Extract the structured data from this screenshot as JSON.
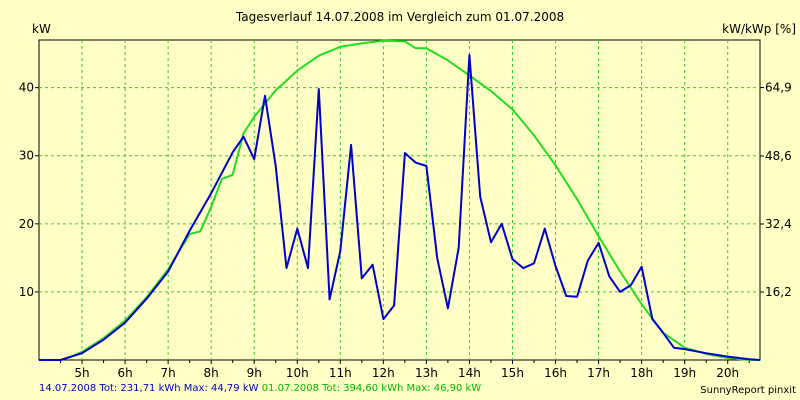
{
  "title": "Tagesverlauf 14.07.2008 im Vergleich zum 01.07.2008",
  "left_unit": "kW",
  "right_unit": "kW/kWp [%]",
  "footer_left": "14.07.2008 Tot: 231,71 kWh Max: 44,79 kW",
  "footer_mid": " 01.07.2008 Tot: 394,60 kWh Max: 46,90 kW",
  "footer_right": "SunnyReport pinxit",
  "colors": {
    "background": "#ffffc6",
    "grid": "#33cc33",
    "series1": "#0000cc",
    "series2": "#22dd22"
  },
  "chart_data": {
    "type": "line",
    "xlim": [
      4.0,
      20.75
    ],
    "ylim": [
      0,
      47
    ],
    "grid": true,
    "x_ticks": [
      5,
      6,
      7,
      8,
      9,
      10,
      11,
      12,
      13,
      14,
      15,
      16,
      17,
      18,
      19,
      20
    ],
    "x_tick_labels": [
      "5h",
      "6h",
      "7h",
      "8h",
      "9h",
      "10h",
      "11h",
      "12h",
      "13h",
      "14h",
      "15h",
      "16h",
      "17h",
      "18h",
      "19h",
      "20h"
    ],
    "y_ticks": [
      10,
      20,
      30,
      40
    ],
    "y_tick_labels": [
      "10",
      "20",
      "30",
      "40"
    ],
    "y2_ticks": [
      16.2,
      32.4,
      48.6,
      64.9
    ],
    "y2_tick_labels": [
      "16,2",
      "32,4",
      "48,6",
      "64,9"
    ],
    "y2_scale": 1.622,
    "series": [
      {
        "name": "14.07.2008",
        "color": "#0000cc",
        "x": [
          4.0,
          4.5,
          4.75,
          5.0,
          5.5,
          6.0,
          6.5,
          7.0,
          7.5,
          8.0,
          8.5,
          8.75,
          9.0,
          9.25,
          9.5,
          9.75,
          10.0,
          10.25,
          10.5,
          10.75,
          11.0,
          11.25,
          11.5,
          11.75,
          12.0,
          12.25,
          12.5,
          12.75,
          13.0,
          13.25,
          13.5,
          13.75,
          14.0,
          14.25,
          14.5,
          14.75,
          15.0,
          15.25,
          15.5,
          15.75,
          16.0,
          16.25,
          16.5,
          16.75,
          17.0,
          17.25,
          17.5,
          17.75,
          18.0,
          18.25,
          18.5,
          18.75,
          19.0,
          19.5,
          20.0,
          20.5,
          20.75
        ],
        "y": [
          0,
          0,
          0.5,
          1.0,
          3.0,
          5.5,
          9.0,
          13.0,
          19.0,
          24.5,
          30.5,
          32.8,
          29.5,
          38.8,
          28.5,
          13.5,
          19.3,
          13.5,
          39.8,
          8.9,
          16.0,
          31.6,
          12.0,
          14.0,
          6.0,
          8.0,
          30.4,
          29.0,
          28.5,
          15.0,
          7.6,
          16.5,
          44.8,
          24.0,
          17.3,
          20.0,
          14.8,
          13.5,
          14.2,
          19.3,
          13.8,
          9.4,
          9.3,
          14.6,
          17.2,
          12.3,
          10.0,
          11.0,
          13.7,
          6.0,
          4.0,
          1.8,
          1.6,
          1.0,
          0.5,
          0.1,
          0.0
        ]
      },
      {
        "name": "01.07.2008",
        "color": "#22dd22",
        "x": [
          4.0,
          4.5,
          4.75,
          5.0,
          5.5,
          6.0,
          6.5,
          7.0,
          7.5,
          7.75,
          8.0,
          8.25,
          8.5,
          8.75,
          9.0,
          9.5,
          10.0,
          10.5,
          11.0,
          11.5,
          12.0,
          12.5,
          12.75,
          13.0,
          13.5,
          14.0,
          14.5,
          15.0,
          15.5,
          16.0,
          16.5,
          17.0,
          17.5,
          18.0,
          18.5,
          19.0,
          19.5,
          20.0,
          20.5,
          20.75
        ],
        "y": [
          0,
          0,
          0.5,
          1.2,
          3.2,
          5.8,
          9.2,
          13.3,
          18.5,
          18.9,
          22.5,
          26.6,
          27.2,
          33.3,
          35.7,
          39.6,
          42.5,
          44.7,
          46.0,
          46.5,
          46.9,
          46.8,
          45.8,
          45.8,
          44.0,
          41.8,
          39.5,
          36.8,
          33.0,
          28.6,
          23.6,
          18.2,
          13.0,
          8.2,
          4.0,
          1.8,
          0.9,
          0.3,
          0.0,
          0.0
        ]
      }
    ]
  }
}
